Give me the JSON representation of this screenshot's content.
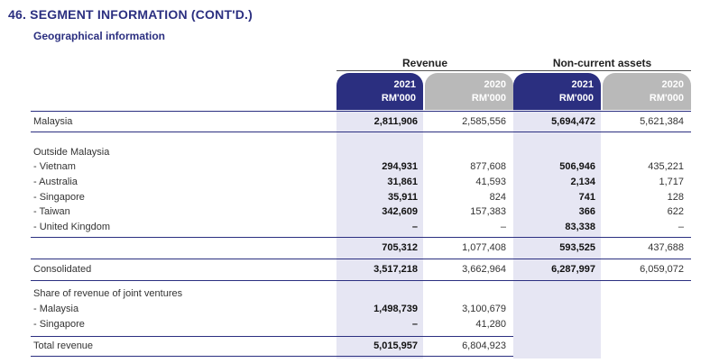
{
  "title": "46. SEGMENT INFORMATION (CONT'D.)",
  "subtitle": "Geographical information",
  "groups": {
    "revenue": "Revenue",
    "assets": "Non-current assets"
  },
  "columns": [
    {
      "year": "2021",
      "unit": "RM'000"
    },
    {
      "year": "2020",
      "unit": "RM'000"
    },
    {
      "year": "2021",
      "unit": "RM'000"
    },
    {
      "year": "2020",
      "unit": "RM'000"
    }
  ],
  "rows": {
    "malaysia": {
      "label": "Malaysia",
      "values": [
        "2,811,906",
        "2,585,556",
        "5,694,472",
        "5,621,384"
      ]
    },
    "outside_heading": "Outside Malaysia",
    "vietnam": {
      "label": "- Vietnam",
      "values": [
        "294,931",
        "877,608",
        "506,946",
        "435,221"
      ]
    },
    "australia": {
      "label": "- Australia",
      "values": [
        "31,861",
        "41,593",
        "2,134",
        "1,717"
      ]
    },
    "singapore": {
      "label": "- Singapore",
      "values": [
        "35,911",
        "824",
        "741",
        "128"
      ]
    },
    "taiwan": {
      "label": "- Taiwan",
      "values": [
        "342,609",
        "157,383",
        "366",
        "622"
      ]
    },
    "uk": {
      "label": "- United Kingdom",
      "values": [
        "–",
        "–",
        "83,338",
        "–"
      ]
    },
    "outside_total": {
      "values": [
        "705,312",
        "1,077,408",
        "593,525",
        "437,688"
      ]
    },
    "consolidated": {
      "label": "Consolidated",
      "values": [
        "3,517,218",
        "3,662,964",
        "6,287,997",
        "6,059,072"
      ]
    },
    "jv_heading": "Share of revenue of joint ventures",
    "jv_malaysia": {
      "label": "- Malaysia",
      "values": [
        "1,498,739",
        "3,100,679"
      ]
    },
    "jv_singapore": {
      "label": "- Singapore",
      "values": [
        "–",
        "41,280"
      ]
    },
    "total_revenue": {
      "label": "Total revenue",
      "values": [
        "5,015,957",
        "6,804,923"
      ]
    }
  }
}
